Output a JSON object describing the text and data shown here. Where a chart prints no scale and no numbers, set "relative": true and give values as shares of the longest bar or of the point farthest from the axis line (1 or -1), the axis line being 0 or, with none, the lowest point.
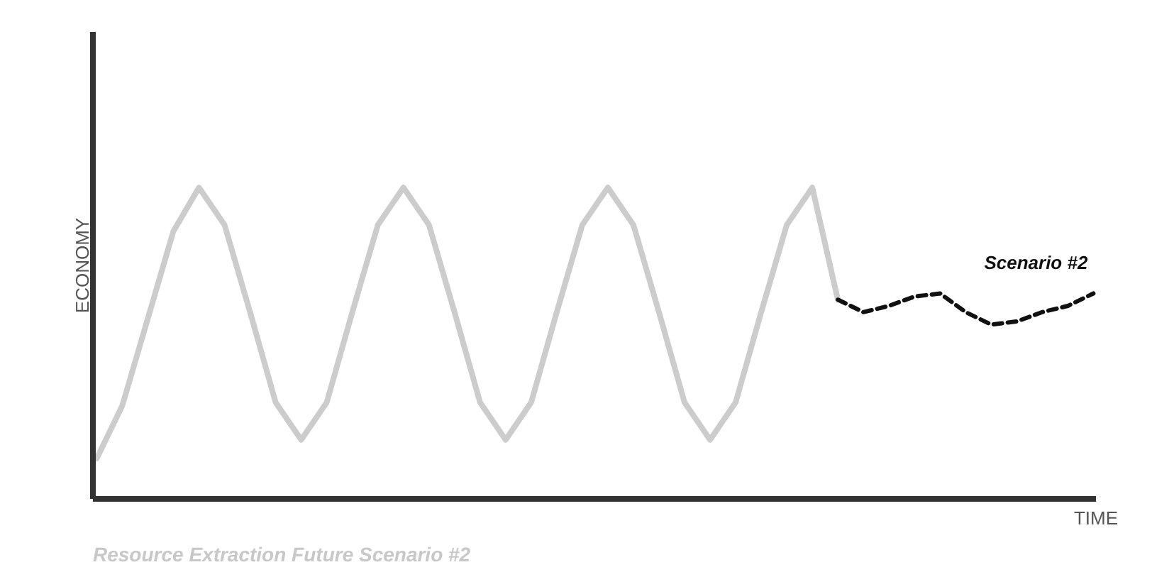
{
  "chart_data": {
    "type": "line",
    "relative": true,
    "title": "Resource Extraction Future Scenario #2",
    "xlabel": "TIME",
    "ylabel": "ECONOMY",
    "categories": [
      null,
      null,
      null,
      null,
      null,
      null,
      null,
      null,
      null,
      null,
      null,
      null,
      null,
      null,
      null,
      null,
      null,
      null,
      null,
      null,
      null,
      null,
      null,
      null,
      null,
      null,
      null,
      null,
      null,
      null,
      null,
      null,
      null,
      null,
      null,
      null,
      null,
      null,
      null,
      null
    ],
    "series": [
      {
        "color": "#cccccc",
        "line_style": "solid",
        "values": [
          0.13,
          0.3,
          0.58,
          0.86,
          1,
          0.88,
          0.6,
          0.31,
          0.19,
          0.31,
          0.6,
          0.88,
          1,
          0.88,
          0.6,
          0.31,
          0.19,
          0.31,
          0.6,
          0.88,
          1,
          0.88,
          0.6,
          0.31,
          0.19,
          0.31,
          0.6,
          0.88,
          1,
          0.64,
          null,
          null,
          null,
          null,
          null,
          null,
          null,
          null,
          null,
          null
        ]
      },
      {
        "name": "Scenario #2",
        "color": "#111111",
        "line_style": "dashed",
        "values": [
          null,
          null,
          null,
          null,
          null,
          null,
          null,
          null,
          null,
          null,
          null,
          null,
          null,
          null,
          null,
          null,
          null,
          null,
          null,
          null,
          null,
          null,
          null,
          null,
          null,
          null,
          null,
          null,
          null,
          0.64,
          0.6,
          0.62,
          0.65,
          0.66,
          0.6,
          0.56,
          0.57,
          0.6,
          0.62,
          0.66
        ]
      }
    ],
    "grid": false,
    "legend": false,
    "marker": "none"
  }
}
